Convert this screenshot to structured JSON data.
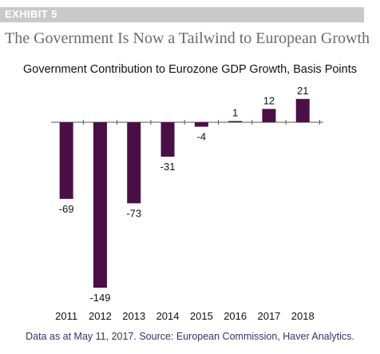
{
  "header": {
    "exhibit_label": "EXHIBIT 5",
    "headline": "The Government Is Now a Tailwind to European Growth"
  },
  "footer": {
    "source": "Data as at May 11, 2017. Source: European Commission, Haver Analytics."
  },
  "colors": {
    "bar": "#4a0f45",
    "axis": "#555555",
    "exhibit_band": "#c9c9cb",
    "headline": "#6b6b6e"
  },
  "chart_data": {
    "type": "bar",
    "title": "Government Contribution to Eurozone GDP Growth, Basis Points",
    "xlabel": "",
    "ylabel": "",
    "categories": [
      "2011",
      "2012",
      "2013",
      "2014",
      "2015",
      "2016",
      "2017",
      "2018"
    ],
    "values": [
      -69,
      -149,
      -73,
      -31,
      -4,
      1,
      12,
      21
    ],
    "data_labels": [
      "-69",
      "-149",
      "-73",
      "-31",
      "-4",
      "1",
      "12",
      "21"
    ],
    "ylim": [
      -149,
      21
    ],
    "grid": false,
    "legend": "none"
  }
}
